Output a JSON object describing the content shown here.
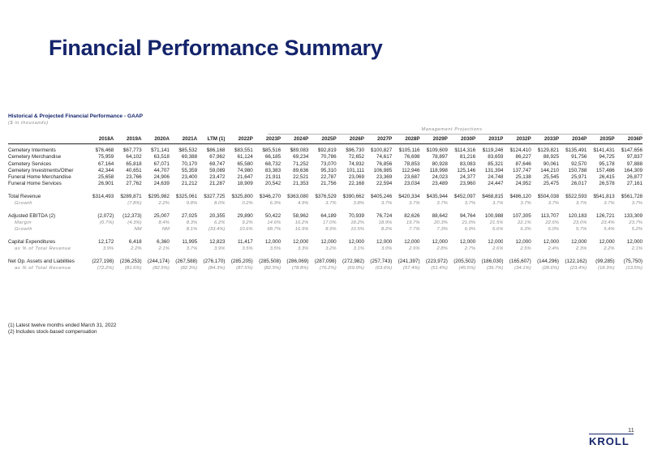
{
  "page": {
    "title": "Financial Performance Summary",
    "page_number": "11",
    "brand": "KROLL"
  },
  "section": {
    "title": "Historical & Projected Financial Performance - GAAP",
    "subtitle": "($ in thousands)",
    "projection_label": "Management Projections"
  },
  "table": {
    "columns": [
      "2018A",
      "2019A",
      "2020A",
      "2021A",
      "LTM (1)",
      "2022P",
      "2023P",
      "2024P",
      "2025P",
      "2026P",
      "2027P",
      "2028P",
      "2029P",
      "2030P",
      "2031P",
      "2032P",
      "2033P",
      "2034P",
      "2035P",
      "2036P"
    ],
    "rows": [
      {
        "label": "Cemetery Interments",
        "values": [
          "$76,468",
          "$67,773",
          "$71,141",
          "$85,532",
          "$86,168",
          "$83,551",
          "$85,516",
          "$89,083",
          "$92,819",
          "$96,730",
          "$100,827",
          "$105,116",
          "$109,609",
          "$114,316",
          "$119,246",
          "$124,410",
          "$129,821",
          "$135,491",
          "$141,431",
          "$147,656"
        ]
      },
      {
        "label": "Cemetery Merchandise",
        "values": [
          "75,959",
          "64,102",
          "63,518",
          "69,388",
          "67,962",
          "61,124",
          "66,185",
          "69,234",
          "70,786",
          "72,652",
          "74,617",
          "76,698",
          "78,897",
          "81,216",
          "83,659",
          "86,227",
          "88,925",
          "91,756",
          "94,725",
          "97,837"
        ]
      },
      {
        "label": "Cemetery Services",
        "values": [
          "67,164",
          "65,818",
          "67,071",
          "70,170",
          "69,747",
          "65,580",
          "68,732",
          "71,252",
          "73,070",
          "74,932",
          "76,856",
          "78,853",
          "80,928",
          "83,083",
          "85,321",
          "87,646",
          "90,061",
          "92,570",
          "95,178",
          "97,888"
        ]
      },
      {
        "label": "Cemetery Investments/Other",
        "values": [
          "42,344",
          "40,651",
          "44,707",
          "55,359",
          "59,089",
          "74,980",
          "83,383",
          "89,636",
          "95,310",
          "101,111",
          "106,985",
          "112,946",
          "118,998",
          "125,146",
          "131,394",
          "137,747",
          "144,210",
          "150,788",
          "157,486",
          "164,309"
        ]
      },
      {
        "label": "Funeral Home Merchandise",
        "values": [
          "25,658",
          "23,766",
          "24,906",
          "23,400",
          "23,472",
          "21,647",
          "21,911",
          "22,521",
          "22,787",
          "23,069",
          "23,369",
          "23,687",
          "24,023",
          "24,377",
          "24,748",
          "25,138",
          "25,545",
          "25,971",
          "26,415",
          "26,877"
        ]
      },
      {
        "label": "Funeral Home Services",
        "values": [
          "26,901",
          "27,762",
          "24,639",
          "21,212",
          "21,287",
          "18,909",
          "20,542",
          "21,353",
          "21,756",
          "22,168",
          "22,594",
          "23,034",
          "23,489",
          "23,960",
          "24,447",
          "24,952",
          "25,475",
          "26,017",
          "26,578",
          "27,161"
        ]
      },
      {
        "label": "Total Revenue",
        "values": [
          "$314,493",
          "$289,871",
          "$295,982",
          "$325,061",
          "$327,725",
          "$325,800",
          "$346,270",
          "$363,080",
          "$376,529",
          "$390,662",
          "$405,246",
          "$420,334",
          "$435,944",
          "$452,097",
          "$468,815",
          "$486,120",
          "$504,038",
          "$522,593",
          "$541,813",
          "$561,728"
        ]
      },
      {
        "label": "Growth",
        "values": [
          "",
          "(7.8%)",
          "2.2%",
          "9.8%",
          "8.0%",
          "0.2%",
          "6.3%",
          "4.9%",
          "3.7%",
          "3.8%",
          "3.7%",
          "3.7%",
          "3.7%",
          "3.7%",
          "3.7%",
          "3.7%",
          "3.7%",
          "3.7%",
          "3.7%",
          "3.7%"
        ]
      },
      {
        "label": "Adjusted EBITDA (2)",
        "values": [
          "(2,072)",
          "(12,373)",
          "25,007",
          "27,025",
          "20,355",
          "29,890",
          "50,422",
          "58,962",
          "64,189",
          "70,939",
          "76,724",
          "82,626",
          "88,642",
          "94,764",
          "100,988",
          "107,305",
          "113,707",
          "120,183",
          "126,721",
          "133,309"
        ]
      },
      {
        "label": "Margin",
        "values": [
          "(0.7%)",
          "(4.3%)",
          "8.4%",
          "8.3%",
          "6.2%",
          "9.2%",
          "14.6%",
          "16.2%",
          "17.0%",
          "18.2%",
          "18.9%",
          "19.7%",
          "20.3%",
          "21.0%",
          "21.5%",
          "22.1%",
          "22.6%",
          "23.0%",
          "23.4%",
          "23.7%"
        ]
      },
      {
        "label": "Growth",
        "values": [
          "",
          "NM",
          "NM",
          "8.1%",
          "(33.4%)",
          "10.6%",
          "68.7%",
          "16.9%",
          "8.9%",
          "10.5%",
          "8.2%",
          "7.7%",
          "7.3%",
          "6.9%",
          "6.6%",
          "6.3%",
          "6.0%",
          "5.7%",
          "5.4%",
          "5.2%"
        ]
      },
      {
        "label": "Capital Expenditures",
        "values": [
          "12,172",
          "6,418",
          "6,360",
          "11,995",
          "12,823",
          "11,417",
          "12,000",
          "12,000",
          "12,000",
          "12,000",
          "12,000",
          "12,000",
          "12,000",
          "12,000",
          "12,000",
          "12,000",
          "12,000",
          "12,000",
          "12,000",
          "12,000"
        ]
      },
      {
        "label": "as % of Total Revenue",
        "values": [
          "3.9%",
          "2.2%",
          "2.1%",
          "3.7%",
          "3.9%",
          "3.5%",
          "3.5%",
          "3.3%",
          "3.2%",
          "3.1%",
          "3.0%",
          "2.9%",
          "2.8%",
          "2.7%",
          "2.6%",
          "2.5%",
          "2.4%",
          "2.3%",
          "2.2%",
          "2.1%"
        ]
      },
      {
        "label": "Net Op. Assets and Liabilities",
        "values": [
          "(227,198)",
          "(236,253)",
          "(244,174)",
          "(267,588)",
          "(276,170)",
          "(285,205)",
          "(285,508)",
          "(286,069)",
          "(287,098)",
          "(272,982)",
          "(257,743)",
          "(241,397)",
          "(223,972)",
          "(205,502)",
          "(186,030)",
          "(165,607)",
          "(144,296)",
          "(122,162)",
          "(99,285)",
          "(75,750)"
        ]
      },
      {
        "label": "as % of Total Revenue",
        "values": [
          "(72.2%)",
          "(81.6%)",
          "(82.5%)",
          "(82.3%)",
          "(84.3%)",
          "(87.5%)",
          "(82.5%)",
          "(78.8%)",
          "(76.2%)",
          "(69.9%)",
          "(63.6%)",
          "(57.4%)",
          "(51.4%)",
          "(45.5%)",
          "(39.7%)",
          "(34.1%)",
          "(28.6%)",
          "(23.4%)",
          "(18.3%)",
          "(13.5%)"
        ]
      }
    ]
  },
  "footnotes": {
    "note1": "(1) Latest twelve months ended March 31, 2022",
    "note2": "(2) Includes stock-based compensation"
  }
}
